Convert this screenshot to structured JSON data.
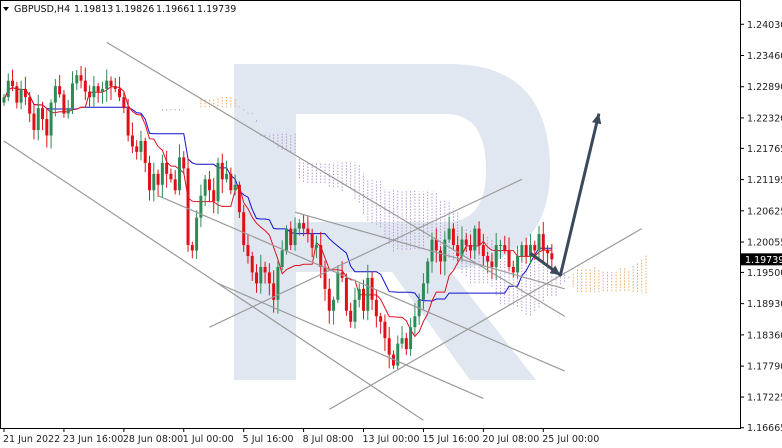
{
  "header": {
    "symbol": "GBPUSD,H4",
    "quote": [
      "1.19813",
      "1.19826",
      "1.19661",
      "1.19739"
    ]
  },
  "colors": {
    "bull": "#2e8b57",
    "bear": "#e0101a",
    "tenkan": "#e01020",
    "kijun": "#1010d0",
    "cloud_a": "#f0a050",
    "cloud_b": "#b090d0",
    "trend": "#9a9a9a",
    "arrow": "#3a4a5a",
    "watermark": "#c8d4e4"
  },
  "chart_data": {
    "type": "candlestick",
    "symbol": "GBPUSD",
    "timeframe": "H4",
    "ylim": [
      1.1666,
      1.244
    ],
    "y_ticks": [
      "1.24030",
      "1.23460",
      "1.22890",
      "1.22320",
      "1.21765",
      "1.21195",
      "1.20625",
      "1.20055",
      "1.19500",
      "1.18930",
      "1.18360",
      "1.17790",
      "1.17225",
      "1.16665"
    ],
    "x_ticks": [
      "21 Jun 2022",
      "23 Jun 16:00",
      "28 Jun 08:00",
      "1 Jul 00:00",
      "5 Jul 16:00",
      "8 Jul 08:00",
      "13 Jul 00:00",
      "15 Jul 16:00",
      "20 Jul 08:00",
      "25 Jul 00:00"
    ],
    "x_tick_index": [
      0,
      14,
      28,
      42,
      56,
      70,
      84,
      98,
      112,
      126
    ],
    "current_price": "1.19739",
    "current_price_value": 1.19739,
    "close": [
      1.227,
      1.23,
      1.229,
      1.226,
      1.2285,
      1.227,
      1.224,
      1.221,
      1.225,
      1.223,
      1.22,
      1.226,
      1.229,
      1.2275,
      1.224,
      1.225,
      1.2295,
      1.231,
      1.23,
      1.228,
      1.227,
      1.229,
      1.228,
      1.2285,
      1.23,
      1.229,
      1.2285,
      1.227,
      1.225,
      1.22,
      1.218,
      1.217,
      1.219,
      1.215,
      1.21,
      1.213,
      1.211,
      1.215,
      1.213,
      1.212,
      1.21,
      1.216,
      1.214,
      1.2,
      1.199,
      1.205,
      1.209,
      1.212,
      1.21,
      1.208,
      1.215,
      1.212,
      1.213,
      1.21,
      1.211,
      1.206,
      1.2,
      1.198,
      1.195,
      1.193,
      1.196,
      1.195,
      1.193,
      1.19,
      1.196,
      1.199,
      1.203,
      1.2,
      1.203,
      1.204,
      1.203,
      1.202,
      1.1995,
      1.2,
      1.196,
      1.192,
      1.188,
      1.19,
      1.195,
      1.194,
      1.188,
      1.186,
      1.19,
      1.192,
      1.188,
      1.194,
      1.19,
      1.187,
      1.186,
      1.183,
      1.18,
      1.178,
      1.182,
      1.183,
      1.181,
      1.185,
      1.187,
      1.19,
      1.193,
      1.197,
      1.201,
      1.199,
      1.197,
      1.201,
      1.203,
      1.2,
      1.198,
      1.201,
      1.2,
      1.199,
      1.203,
      1.2,
      1.198,
      1.197,
      1.196,
      1.2,
      1.2,
      1.199,
      1.196,
      1.195,
      1.198,
      1.2,
      1.198,
      1.2,
      1.199,
      1.202,
      1.199,
      1.1985,
      1.1974
    ]
  },
  "annotations": {
    "trend_lines": [
      {
        "from": [
          0,
          1.219
        ],
        "to": [
          98,
          1.168
        ]
      },
      {
        "from": [
          50,
          1.193
        ],
        "to": [
          112,
          1.172
        ]
      },
      {
        "from": [
          36,
          1.209
        ],
        "to": [
          131,
          1.177
        ]
      },
      {
        "from": [
          24,
          1.237
        ],
        "to": [
          131,
          1.187
        ]
      },
      {
        "from": [
          76,
          1.17
        ],
        "to": [
          149,
          1.203
        ]
      },
      {
        "from": [
          48,
          1.185
        ],
        "to": [
          121,
          1.212
        ]
      },
      {
        "from": [
          68,
          1.206
        ],
        "to": [
          131,
          1.192
        ]
      }
    ],
    "forecast_arrow": [
      [
        123,
        1.1985
      ],
      [
        130,
        1.1945
      ],
      [
        139,
        1.224
      ]
    ]
  }
}
